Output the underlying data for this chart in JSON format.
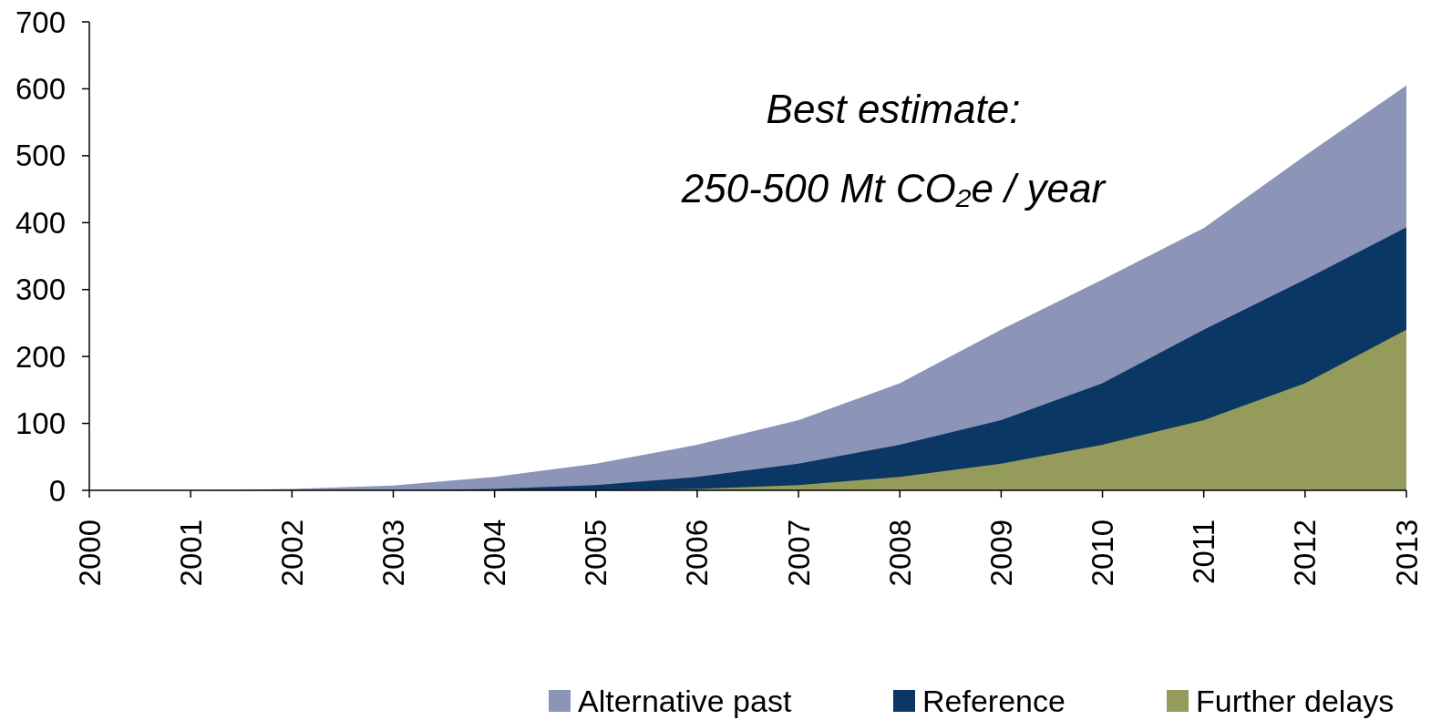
{
  "chart_data": {
    "type": "area",
    "x": [
      2000,
      2001,
      2002,
      2003,
      2004,
      2005,
      2006,
      2007,
      2008,
      2009,
      2010,
      2011,
      2012,
      2013
    ],
    "series": [
      {
        "name": "Alternative past",
        "color": "#8c95b8",
        "values": [
          0,
          0,
          2,
          7,
          20,
          40,
          68,
          105,
          160,
          240,
          315,
          392,
          500,
          605
        ]
      },
      {
        "name": "Reference",
        "color": "#0a3763",
        "values": [
          0,
          0,
          0,
          0,
          2,
          8,
          20,
          40,
          68,
          105,
          160,
          240,
          315,
          393
        ]
      },
      {
        "name": "Further delays",
        "color": "#949b5b",
        "values": [
          0,
          0,
          0,
          0,
          0,
          0,
          2,
          8,
          20,
          40,
          68,
          105,
          160,
          240
        ]
      }
    ],
    "xlim": [
      2000,
      2013
    ],
    "xticks": [
      2000,
      2001,
      2002,
      2003,
      2004,
      2005,
      2006,
      2007,
      2008,
      2009,
      2010,
      2011,
      2012,
      2013
    ],
    "ylim": [
      0,
      700
    ],
    "yticks": [
      0,
      100,
      200,
      300,
      400,
      500,
      600,
      700
    ],
    "annotations": [
      "Best estimate:",
      "250-500 Mt CO₂e / year"
    ],
    "legend": "bottom",
    "grid": false
  }
}
